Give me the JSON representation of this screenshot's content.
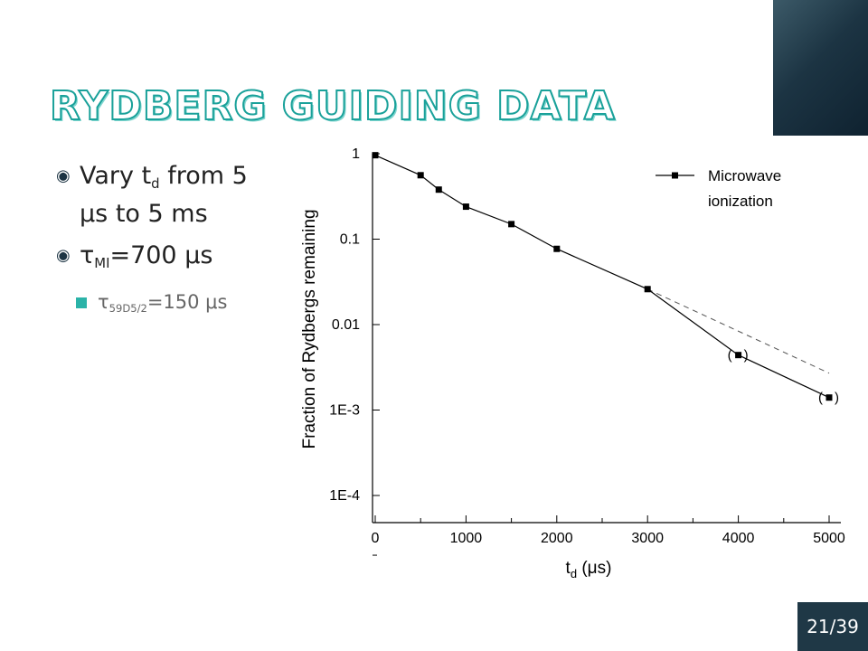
{
  "slide": {
    "title": "RYDBERG GUIDING DATA",
    "page_number": "21/39",
    "colors": {
      "title_outline": "#1aa19a",
      "accent_block": "#1c3443",
      "bullet_square": "#2bb3a8"
    }
  },
  "bullets": {
    "b1": {
      "icon": "target-bullet-icon",
      "pre": "Vary t",
      "sub": "d",
      "post": " from 5 μs to 5 ms"
    },
    "b2": {
      "icon": "target-bullet-icon",
      "pre": "τ",
      "sub": "MI",
      "post": "=700 μs"
    },
    "b3": {
      "icon": "square-bullet-icon",
      "pre": "τ",
      "sub": "59D5/2",
      "post": "=150 μs"
    }
  },
  "chart_data": {
    "type": "line",
    "y_scale": "log",
    "xlim": [
      0,
      5000
    ],
    "ylim": [
      0.0001,
      1
    ],
    "x_ticks": [
      0,
      1000,
      2000,
      3000,
      4000,
      5000
    ],
    "x_tick_labels": [
      "0",
      "1000",
      "2000",
      "3000",
      "4000",
      "5000"
    ],
    "y_ticks": [
      1,
      0.1,
      0.01,
      0.001,
      0.0001
    ],
    "y_tick_labels": [
      "1",
      "0.1",
      "0.01",
      "1E-3",
      "1E-4"
    ],
    "xlabel": {
      "pre": "t",
      "sub": "d",
      "post": "  (μs)"
    },
    "ylabel": "Fraction of Rydbergs remaining",
    "legend": {
      "label_line1": "Microwave",
      "label_line2": "ionization",
      "position": "top-right"
    },
    "series": [
      {
        "name": "Microwave ionization",
        "x": [
          0,
          500,
          700,
          1000,
          1500,
          2000,
          3000,
          4000,
          5000
        ],
        "y": [
          0.96,
          0.56,
          0.38,
          0.24,
          0.15,
          0.077,
          0.026,
          0.0044,
          0.0014
        ],
        "parenthesized_points": [
          4000,
          5000
        ]
      }
    ],
    "fit_line": {
      "style": "dashed",
      "x": [
        3000,
        5000
      ],
      "y": [
        0.026,
        0.0027
      ]
    },
    "point_annotation": "(",
    "point_annotation_close": ")"
  }
}
